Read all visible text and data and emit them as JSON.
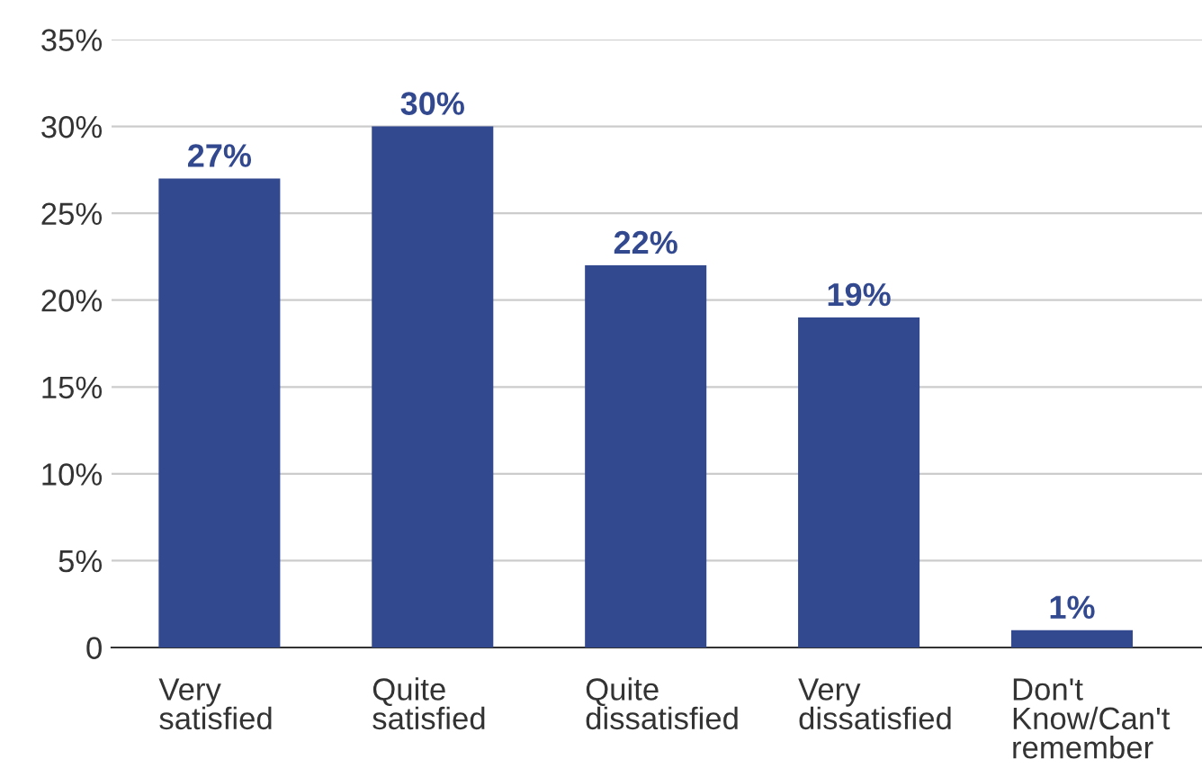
{
  "chart_data": {
    "type": "bar",
    "categories": [
      "Very\nsatisfied",
      "Quite\nsatisfied",
      "Quite\ndissatisfied",
      "Very\ndissatisfied",
      "Don't\nKnow/Can't\nremember"
    ],
    "values": [
      27,
      30,
      22,
      19,
      1
    ],
    "value_labels": [
      "27%",
      "30%",
      "22%",
      "19%",
      "1%"
    ],
    "color": "#32488f",
    "ylim": [
      0,
      35
    ],
    "yticks": [
      {
        "value": 0,
        "label": "0"
      },
      {
        "value": 5,
        "label": "5%"
      },
      {
        "value": 10,
        "label": "10%"
      },
      {
        "value": 15,
        "label": "15%"
      },
      {
        "value": 20,
        "label": "20%"
      },
      {
        "value": 25,
        "label": "25%"
      },
      {
        "value": 30,
        "label": "30%"
      },
      {
        "value": 35,
        "label": "35%"
      }
    ],
    "grid": "y",
    "legend": false
  }
}
